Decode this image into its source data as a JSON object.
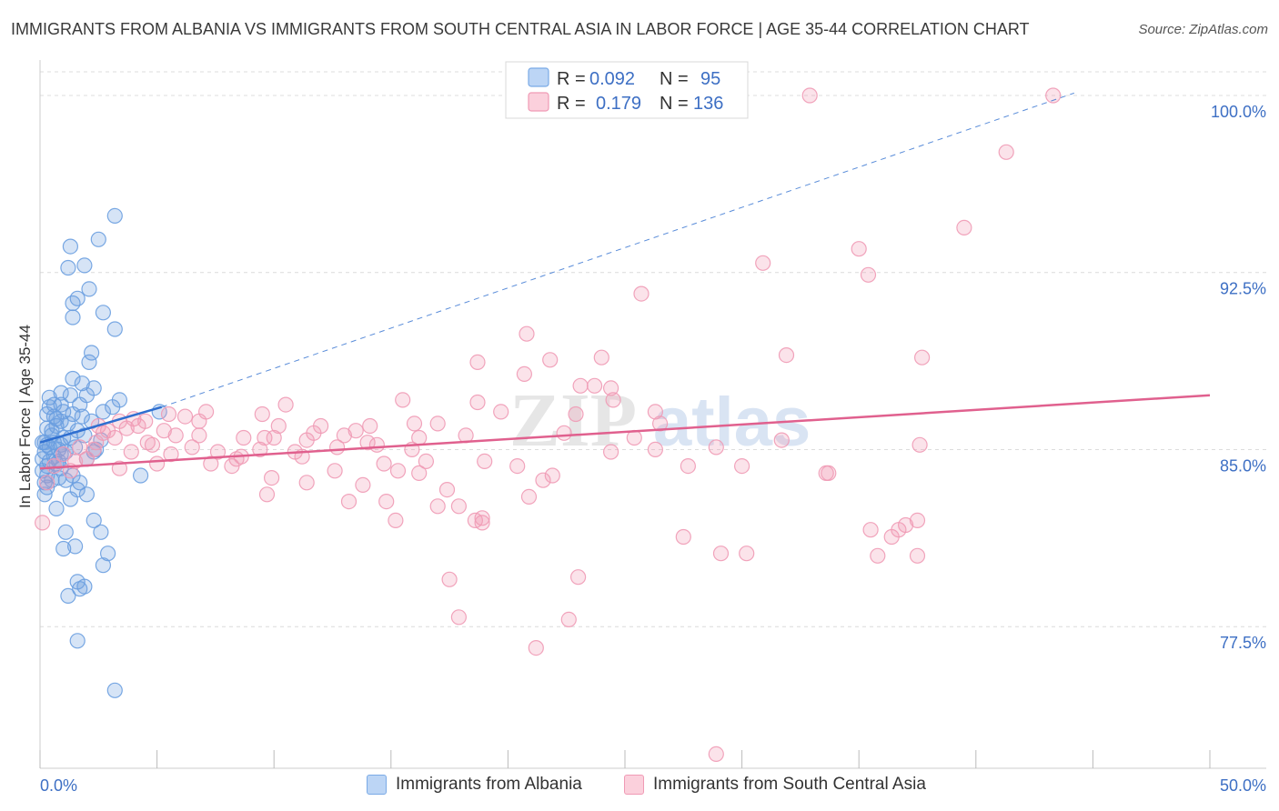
{
  "title": "IMMIGRANTS FROM ALBANIA VS IMMIGRANTS FROM SOUTH CENTRAL ASIA IN LABOR FORCE | AGE 35-44 CORRELATION CHART",
  "source": "Source: ZipAtlas.com",
  "watermark": {
    "zip": "ZIP",
    "atlas": "atlas"
  },
  "chart_data": {
    "type": "scatter",
    "title": "IMMIGRANTS FROM ALBANIA VS IMMIGRANTS FROM SOUTH CENTRAL ASIA IN LABOR FORCE | AGE 35-44 CORRELATION CHART",
    "xlabel": "",
    "ylabel": "In Labor Force | Age 35-44",
    "xlim": [
      0,
      50
    ],
    "ylim": [
      71.5,
      101.5
    ],
    "x_tick_labels": [
      "0.0%",
      "50.0%"
    ],
    "y_ticks": [
      77.5,
      85.0,
      92.5,
      100.0
    ],
    "y_tick_labels": [
      "77.5%",
      "85.0%",
      "92.5%",
      "100.0%"
    ],
    "legend": {
      "position": "top-center",
      "entries": [
        {
          "r_label": "R =",
          "r_value": "0.092",
          "n_label": "N =",
          "n_value": "95"
        },
        {
          "r_label": "R =",
          "r_value": "0.179",
          "n_label": "N =",
          "n_value": "136"
        }
      ]
    },
    "series": [
      {
        "name": "Immigrants from Albania",
        "color": "#6a9fe0",
        "line_color": "#2f6fd0",
        "trend": {
          "x": [
            0,
            5.2
          ],
          "y": [
            85.3,
            86.8
          ]
        },
        "trend_extension": {
          "x": [
            5.2,
            44.2
          ],
          "y": [
            86.8,
            100.1
          ]
        },
        "points": [
          [
            3.2,
            94.9
          ],
          [
            2.5,
            93.9
          ],
          [
            1.3,
            93.6
          ],
          [
            1.9,
            92.8
          ],
          [
            1.2,
            92.7
          ],
          [
            2.1,
            91.8
          ],
          [
            1.6,
            91.4
          ],
          [
            2.7,
            90.8
          ],
          [
            1.4,
            91.2
          ],
          [
            1.4,
            90.6
          ],
          [
            3.2,
            90.1
          ],
          [
            2.2,
            89.1
          ],
          [
            2.1,
            88.7
          ],
          [
            1.4,
            88.0
          ],
          [
            1.8,
            87.8
          ],
          [
            2.3,
            87.6
          ],
          [
            0.9,
            87.4
          ],
          [
            1.3,
            87.3
          ],
          [
            2.0,
            87.3
          ],
          [
            3.4,
            87.1
          ],
          [
            0.4,
            87.2
          ],
          [
            1.7,
            86.9
          ],
          [
            0.6,
            86.9
          ],
          [
            0.9,
            86.9
          ],
          [
            1.0,
            86.6
          ],
          [
            1.4,
            86.5
          ],
          [
            3.1,
            86.8
          ],
          [
            2.7,
            86.6
          ],
          [
            5.1,
            86.6
          ],
          [
            0.3,
            86.5
          ],
          [
            0.6,
            86.4
          ],
          [
            0.7,
            86.3
          ],
          [
            0.9,
            86.2
          ],
          [
            1.2,
            86.1
          ],
          [
            2.2,
            86.2
          ],
          [
            0.3,
            85.9
          ],
          [
            0.5,
            85.8
          ],
          [
            1.6,
            85.8
          ],
          [
            1.9,
            85.6
          ],
          [
            1.3,
            85.5
          ],
          [
            0.1,
            85.3
          ],
          [
            0.3,
            85.2
          ],
          [
            0.6,
            85.3
          ],
          [
            0.9,
            85.2
          ],
          [
            0.4,
            85.1
          ],
          [
            0.8,
            85.0
          ],
          [
            1.1,
            84.9
          ],
          [
            0.2,
            84.9
          ],
          [
            0.6,
            84.7
          ],
          [
            2.3,
            84.9
          ],
          [
            2.4,
            85.0
          ],
          [
            0.1,
            84.6
          ],
          [
            0.4,
            84.5
          ],
          [
            0.8,
            84.5
          ],
          [
            0.3,
            84.3
          ],
          [
            0.1,
            84.1
          ],
          [
            0.9,
            84.2
          ],
          [
            0.3,
            83.9
          ],
          [
            1.4,
            83.9
          ],
          [
            0.8,
            83.8
          ],
          [
            4.3,
            83.9
          ],
          [
            1.1,
            83.7
          ],
          [
            0.2,
            83.6
          ],
          [
            1.7,
            83.6
          ],
          [
            0.3,
            83.4
          ],
          [
            1.6,
            83.3
          ],
          [
            2.0,
            83.1
          ],
          [
            1.3,
            82.9
          ],
          [
            0.7,
            82.5
          ],
          [
            2.3,
            82.0
          ],
          [
            1.1,
            81.5
          ],
          [
            2.6,
            81.5
          ],
          [
            1.5,
            80.9
          ],
          [
            1.0,
            80.8
          ],
          [
            2.9,
            80.6
          ],
          [
            2.7,
            80.1
          ],
          [
            1.6,
            79.4
          ],
          [
            1.9,
            79.2
          ],
          [
            1.7,
            79.1
          ],
          [
            1.2,
            78.8
          ],
          [
            1.6,
            76.9
          ],
          [
            3.2,
            74.8
          ],
          [
            0.5,
            85.6
          ],
          [
            0.2,
            85.3
          ],
          [
            0.7,
            86.0
          ],
          [
            1.5,
            85.1
          ],
          [
            2.6,
            85.4
          ],
          [
            0.9,
            84.8
          ],
          [
            0.5,
            83.7
          ],
          [
            1.8,
            86.4
          ],
          [
            0.4,
            86.8
          ],
          [
            1.0,
            85.5
          ],
          [
            0.7,
            84.4
          ],
          [
            2.0,
            84.6
          ],
          [
            0.2,
            83.1
          ]
        ]
      },
      {
        "name": "Immigrants from South Central Asia",
        "color": "#f09ab5",
        "line_color": "#e0608e",
        "trend": {
          "x": [
            0,
            50
          ],
          "y": [
            84.2,
            87.3
          ]
        },
        "points": [
          [
            43.3,
            100.0
          ],
          [
            32.9,
            100.0
          ],
          [
            41.3,
            97.6
          ],
          [
            39.5,
            94.4
          ],
          [
            35.0,
            93.5
          ],
          [
            35.4,
            92.4
          ],
          [
            30.9,
            92.9
          ],
          [
            25.7,
            91.6
          ],
          [
            20.8,
            89.9
          ],
          [
            31.9,
            89.0
          ],
          [
            37.7,
            88.9
          ],
          [
            21.8,
            88.8
          ],
          [
            24.0,
            88.9
          ],
          [
            18.7,
            88.7
          ],
          [
            20.7,
            88.2
          ],
          [
            23.7,
            87.7
          ],
          [
            24.4,
            87.6
          ],
          [
            23.1,
            87.7
          ],
          [
            15.5,
            87.1
          ],
          [
            18.7,
            87.0
          ],
          [
            24.5,
            87.1
          ],
          [
            10.5,
            86.9
          ],
          [
            19.7,
            86.6
          ],
          [
            26.3,
            86.6
          ],
          [
            7.1,
            86.6
          ],
          [
            5.5,
            86.5
          ],
          [
            9.5,
            86.5
          ],
          [
            4.0,
            86.3
          ],
          [
            4.5,
            86.2
          ],
          [
            3.4,
            86.2
          ],
          [
            6.8,
            86.2
          ],
          [
            16.0,
            86.1
          ],
          [
            17.0,
            86.1
          ],
          [
            12.0,
            86.0
          ],
          [
            14.1,
            86.0
          ],
          [
            3.7,
            85.9
          ],
          [
            4.2,
            86.0
          ],
          [
            2.9,
            85.8
          ],
          [
            22.4,
            85.7
          ],
          [
            5.3,
            85.8
          ],
          [
            6.8,
            85.6
          ],
          [
            10.0,
            85.5
          ],
          [
            8.7,
            85.5
          ],
          [
            9.6,
            85.5
          ],
          [
            13.0,
            85.6
          ],
          [
            16.2,
            85.5
          ],
          [
            5.8,
            85.6
          ],
          [
            3.2,
            85.5
          ],
          [
            11.4,
            85.4
          ],
          [
            14.0,
            85.3
          ],
          [
            25.4,
            85.5
          ],
          [
            31.7,
            85.4
          ],
          [
            2.4,
            85.3
          ],
          [
            4.6,
            85.3
          ],
          [
            6.5,
            85.1
          ],
          [
            9.4,
            85.0
          ],
          [
            12.7,
            85.1
          ],
          [
            14.4,
            85.2
          ],
          [
            1.7,
            85.1
          ],
          [
            2.3,
            85.0
          ],
          [
            28.9,
            85.1
          ],
          [
            37.6,
            85.2
          ],
          [
            24.4,
            84.9
          ],
          [
            26.3,
            85.0
          ],
          [
            10.9,
            84.9
          ],
          [
            15.9,
            85.0
          ],
          [
            7.6,
            84.9
          ],
          [
            11.2,
            84.7
          ],
          [
            8.4,
            84.6
          ],
          [
            8.6,
            84.7
          ],
          [
            2.0,
            84.6
          ],
          [
            1.5,
            84.5
          ],
          [
            5.0,
            84.4
          ],
          [
            14.7,
            84.4
          ],
          [
            16.5,
            84.5
          ],
          [
            8.2,
            84.3
          ],
          [
            20.4,
            84.3
          ],
          [
            3.4,
            84.2
          ],
          [
            27.7,
            84.3
          ],
          [
            15.3,
            84.1
          ],
          [
            12.6,
            84.1
          ],
          [
            16.2,
            84.0
          ],
          [
            33.6,
            84.0
          ],
          [
            21.9,
            83.9
          ],
          [
            9.9,
            83.8
          ],
          [
            11.4,
            83.6
          ],
          [
            13.8,
            83.5
          ],
          [
            21.5,
            83.7
          ],
          [
            17.4,
            83.3
          ],
          [
            20.9,
            83.0
          ],
          [
            9.7,
            83.1
          ],
          [
            13.2,
            82.8
          ],
          [
            14.8,
            82.8
          ],
          [
            17.0,
            82.6
          ],
          [
            17.9,
            82.6
          ],
          [
            18.9,
            82.1
          ],
          [
            15.2,
            82.0
          ],
          [
            18.6,
            82.0
          ],
          [
            18.9,
            81.9
          ],
          [
            37.5,
            82.0
          ],
          [
            37.0,
            81.8
          ],
          [
            35.5,
            81.6
          ],
          [
            36.7,
            81.6
          ],
          [
            36.4,
            81.3
          ],
          [
            27.5,
            81.3
          ],
          [
            29.1,
            80.6
          ],
          [
            30.2,
            80.6
          ],
          [
            35.8,
            80.5
          ],
          [
            37.5,
            80.5
          ],
          [
            23.0,
            79.6
          ],
          [
            17.5,
            79.5
          ],
          [
            17.9,
            77.9
          ],
          [
            22.6,
            77.8
          ],
          [
            21.2,
            76.6
          ],
          [
            28.9,
            72.1
          ],
          [
            0.3,
            83.6
          ],
          [
            1.3,
            84.1
          ],
          [
            0.6,
            84.3
          ],
          [
            0.1,
            81.9
          ],
          [
            2.7,
            85.7
          ],
          [
            4.8,
            85.2
          ],
          [
            3.9,
            84.9
          ],
          [
            7.3,
            84.4
          ],
          [
            19.0,
            84.5
          ],
          [
            1.0,
            84.8
          ],
          [
            11.7,
            85.7
          ],
          [
            18.2,
            85.6
          ],
          [
            26.5,
            86.1
          ],
          [
            6.2,
            86.4
          ],
          [
            22.9,
            86.5
          ],
          [
            10.2,
            86.0
          ],
          [
            13.5,
            85.8
          ],
          [
            30.0,
            84.3
          ],
          [
            33.7,
            84.0
          ],
          [
            5.6,
            84.8
          ],
          [
            2.5,
            86.0
          ]
        ]
      }
    ],
    "bottom_legend": [
      "Immigrants from Albania",
      "Immigrants from South Central Asia"
    ]
  }
}
